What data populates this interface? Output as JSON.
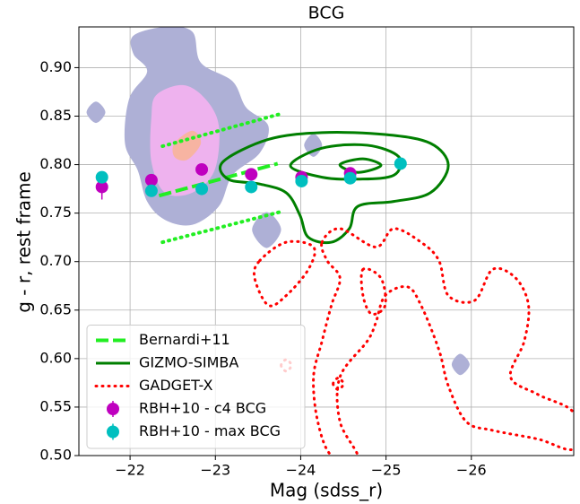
{
  "chart_data": {
    "type": "scatter",
    "title": "BCG",
    "xlabel": "Mag (sdss_r)",
    "ylabel": "g - r, rest frame",
    "xlim": [
      -21.4,
      -27.2
    ],
    "ylim": [
      0.5,
      0.942
    ],
    "xticks": [
      {
        "value": -22,
        "label": "−22"
      },
      {
        "value": -23,
        "label": "−23"
      },
      {
        "value": -24,
        "label": "−24"
      },
      {
        "value": -25,
        "label": "−25"
      },
      {
        "value": -26,
        "label": "−26"
      }
    ],
    "yticks": [
      {
        "value": 0.5,
        "label": "0.50"
      },
      {
        "value": 0.55,
        "label": "0.55"
      },
      {
        "value": 0.6,
        "label": "0.60"
      },
      {
        "value": 0.65,
        "label": "0.65"
      },
      {
        "value": 0.7,
        "label": "0.70"
      },
      {
        "value": 0.75,
        "label": "0.75"
      },
      {
        "value": 0.8,
        "label": "0.80"
      },
      {
        "value": 0.85,
        "label": "0.85"
      },
      {
        "value": 0.9,
        "label": "0.90"
      }
    ],
    "grid": true,
    "legend": "lower left",
    "regions": [
      {
        "color": "#aeb0d6",
        "contours": [
          {
            "x": [
              -22.04,
              -22.41,
              -22.73,
              -22.83,
              -23.2,
              -23.36,
              -23.62,
              -23.52,
              -23.2,
              -23.04,
              -22.73,
              -22.41,
              -22.2,
              -22.09,
              -21.94,
              -21.99,
              -22.2,
              -22.04
            ],
            "values": [
              0.933,
              0.942,
              0.937,
              0.905,
              0.886,
              0.859,
              0.84,
              0.812,
              0.789,
              0.757,
              0.738,
              0.743,
              0.762,
              0.794,
              0.822,
              0.868,
              0.896,
              0.914
            ]
          },
          {
            "x": [
              -21.49,
              -21.6,
              -21.71,
              -21.6
            ],
            "values": [
              0.854,
              0.865,
              0.854,
              0.843
            ]
          },
          {
            "x": [
              -24.04,
              -24.15,
              -24.25,
              -24.15
            ],
            "values": [
              0.82,
              0.832,
              0.82,
              0.808
            ]
          },
          {
            "x": [
              -23.43,
              -23.6,
              -23.77,
              -23.6
            ],
            "values": [
              0.733,
              0.751,
              0.733,
              0.714
            ]
          },
          {
            "x": [
              -25.77,
              -25.87,
              -25.98,
              -25.87
            ],
            "values": [
              0.594,
              0.605,
              0.594,
              0.583
            ]
          }
        ]
      },
      {
        "color": "#eeb2ee",
        "contours": [
          {
            "x": [
              -22.31,
              -22.62,
              -22.88,
              -23.04,
              -22.99,
              -22.73,
              -22.41,
              -22.25,
              -22.25
            ],
            "values": [
              0.872,
              0.882,
              0.868,
              0.84,
              0.794,
              0.771,
              0.771,
              0.803,
              0.849
            ]
          }
        ]
      },
      {
        "color": "#f7b4a2",
        "contours": [
          {
            "x": [
              -22.52,
              -22.73,
              -22.83,
              -22.67,
              -22.52
            ],
            "values": [
              0.822,
              0.835,
              0.822,
              0.805,
              0.808
            ]
          }
        ]
      }
    ],
    "series": [
      {
        "name": "Bernardi+11",
        "color": "#22ee22",
        "lines": [
          {
            "style": "dashed",
            "x": [
              -22.34,
              -23.73
            ],
            "values": [
              0.768,
              0.801
            ]
          },
          {
            "style": "dotted",
            "x": [
              -22.38,
              -23.75
            ],
            "values": [
              0.819,
              0.852
            ]
          },
          {
            "style": "dotted",
            "x": [
              -22.38,
              -23.75
            ],
            "values": [
              0.72,
              0.751
            ]
          }
        ]
      },
      {
        "name": "GIZMO-SIMBA",
        "color": "#007f00",
        "style": "solid",
        "contours": [
          {
            "x": [
              -23.09,
              -23.62,
              -24.25,
              -24.99,
              -25.52,
              -25.73,
              -25.52,
              -25.09,
              -24.67,
              -24.57,
              -24.36,
              -24.09,
              -23.99,
              -23.83,
              -23.52,
              -23.15
            ],
            "values": [
              0.803,
              0.826,
              0.833,
              0.831,
              0.822,
              0.799,
              0.771,
              0.762,
              0.757,
              0.734,
              0.72,
              0.725,
              0.748,
              0.771,
              0.78,
              0.785
            ]
          },
          {
            "x": [
              -23.88,
              -24.25,
              -24.78,
              -25.15,
              -25.09,
              -24.67,
              -24.25
            ],
            "values": [
              0.799,
              0.817,
              0.82,
              0.808,
              0.789,
              0.785,
              0.787
            ]
          },
          {
            "x": [
              -24.46,
              -24.73,
              -24.94,
              -24.67
            ],
            "values": [
              0.8,
              0.806,
              0.799,
              0.792
            ]
          }
        ]
      },
      {
        "name": "GADGET-X",
        "color": "#ff0000",
        "style": "dotted",
        "contours": [
          {
            "x": [
              -24.25,
              -24.46,
              -24.88,
              -25.09,
              -25.41,
              -25.62,
              -25.73,
              -26.04,
              -26.25,
              -26.52,
              -26.67,
              -26.62,
              -26.46,
              -26.78,
              -27.2,
              -27.2,
              -26.78,
              -26.25,
              -25.94,
              -25.73,
              -25.62,
              -25.41,
              -25.25,
              -24.99,
              -24.88,
              -24.78,
              -24.46,
              -24.46,
              -24.67,
              -24.36,
              -24.2,
              -24.15,
              -24.25,
              -24.36,
              -24.46,
              -24.31
            ],
            "values": [
              0.72,
              0.734,
              0.715,
              0.734,
              0.72,
              0.701,
              0.665,
              0.66,
              0.692,
              0.683,
              0.655,
              0.618,
              0.581,
              0.563,
              0.544,
              0.507,
              0.517,
              0.526,
              0.535,
              0.572,
              0.609,
              0.655,
              0.674,
              0.665,
              0.637,
              0.618,
              0.581,
              0.535,
              0.498,
              0.5,
              0.535,
              0.581,
              0.618,
              0.655,
              0.683,
              0.701
            ]
          },
          {
            "x": [
              -23.52,
              -23.83,
              -24.15,
              -24.09,
              -23.83,
              -23.62,
              -23.46
            ],
            "values": [
              0.701,
              0.72,
              0.715,
              0.692,
              0.665,
              0.655,
              0.683
            ]
          },
          {
            "x": [
              -24.73,
              -24.94,
              -24.99,
              -24.83,
              -24.73
            ],
            "values": [
              0.692,
              0.683,
              0.655,
              0.646,
              0.665
            ]
          },
          {
            "x": [
              -23.77,
              -23.83,
              -23.89,
              -23.83
            ],
            "values": [
              0.593,
              0.599,
              0.593,
              0.587
            ]
          },
          {
            "x": [
              -24.38,
              -24.44,
              -24.5,
              -24.44
            ],
            "values": [
              0.574,
              0.58,
              0.574,
              0.568
            ]
          }
        ]
      },
      {
        "name": "RBH+10 - c4 BCG",
        "color": "#bf00bf",
        "x": [
          -21.67,
          -22.25,
          -22.84,
          -23.42,
          -24.01,
          -24.58
        ],
        "values": [
          0.777,
          0.784,
          0.795,
          0.79,
          0.787,
          0.791
        ],
        "errors": [
          0.013,
          0.005,
          0.005,
          0.005,
          0.005,
          0.005
        ]
      },
      {
        "name": "RBH+10 - max BCG",
        "color": "#00bfbf",
        "x": [
          -21.67,
          -22.25,
          -22.84,
          -23.42,
          -24.01,
          -24.58,
          -25.17
        ],
        "values": [
          0.787,
          0.773,
          0.775,
          0.777,
          0.783,
          0.786,
          0.801
        ],
        "errors": [
          0.005,
          0.005,
          0.005,
          0.005,
          0.005,
          0.005,
          0.005
        ]
      }
    ]
  }
}
